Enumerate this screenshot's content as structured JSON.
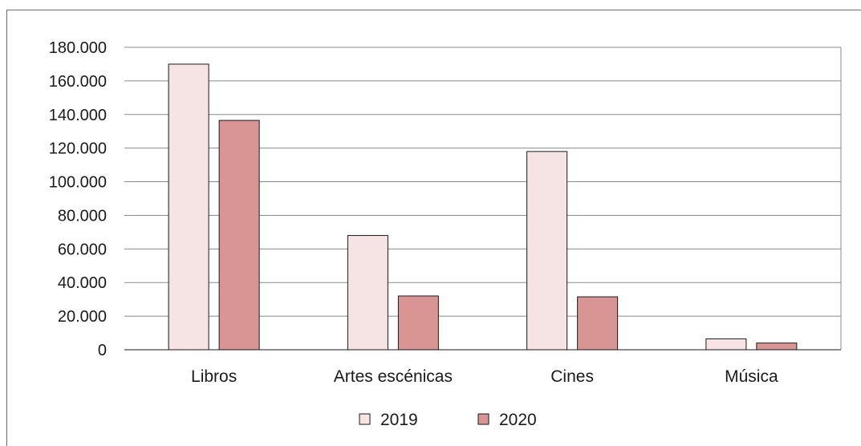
{
  "chart_data": {
    "type": "bar",
    "title": "",
    "xlabel": "",
    "ylabel": "",
    "categories": [
      "Libros",
      "Artes escénicas",
      "Cines",
      "Música"
    ],
    "series": [
      {
        "name": "2019",
        "values": [
          170000,
          68000,
          118000,
          6500
        ],
        "color": "#f6e3e3"
      },
      {
        "name": "2020",
        "values": [
          136500,
          32000,
          31500,
          4000
        ],
        "color": "#d99594"
      }
    ],
    "ylim": [
      0,
      180000
    ],
    "yticks": [
      0,
      20000,
      40000,
      60000,
      80000,
      100000,
      120000,
      140000,
      160000,
      180000
    ],
    "ytick_labels": [
      "0",
      "20.000",
      "40.000",
      "60.000",
      "80.000",
      "100.000",
      "120.000",
      "140.000",
      "160.000",
      "180.000"
    ],
    "grid": true,
    "legend_position": "bottom"
  }
}
